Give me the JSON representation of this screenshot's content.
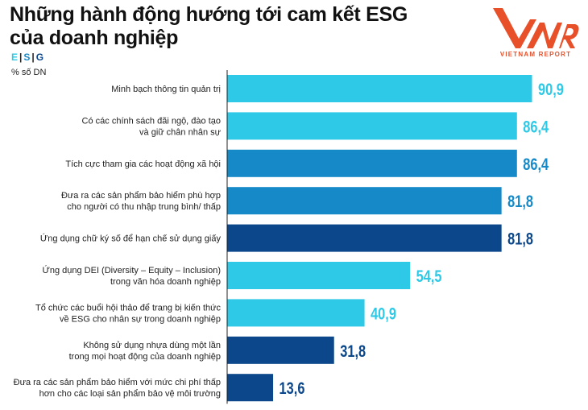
{
  "chart_data": {
    "type": "bar",
    "orientation": "horizontal",
    "title": "Những hành động hướng tới cam kết ESG của doanh nghiệp",
    "title_lines": [
      "Những hành động hướng tới cam kết ESG",
      "của doanh nghiệp"
    ],
    "unit_label": "% số DN",
    "legend": [
      {
        "label": "E",
        "color": "#2ec9e6"
      },
      {
        "label": "S",
        "color": "#168ac8"
      },
      {
        "label": "G",
        "color": "#0b478a"
      }
    ],
    "legend_placement": "top-left",
    "grid": false,
    "xlim": [
      0,
      100
    ],
    "categories": [
      [
        "Minh bạch thông tin quản trị"
      ],
      [
        "Có các chính sách đãi ngộ, đào tạo",
        "và giữ chân nhân sự"
      ],
      [
        "Tích cực tham gia các hoạt động xã hội"
      ],
      [
        "Đưa ra các sản phẩm bảo hiểm phù hợp",
        "cho người có thu nhập trung bình/ thấp"
      ],
      [
        "Ứng dụng chữ ký số để hạn chế sử dụng giấy"
      ],
      [
        "Ứng dụng DEI (Diversity – Equity – Inclusion)",
        "trong văn hóa doanh nghiệp"
      ],
      [
        "Tổ chức các buổi hội thảo để trang bị kiến thức",
        "về ESG cho nhân sự trong doanh nghiệp"
      ],
      [
        "Không sử dụng nhựa dùng một lần",
        "trong mọi hoạt động của doanh nghiệp"
      ],
      [
        "Đưa ra các sản phẩm bảo hiểm với mức chi phí thấp",
        "hơn cho các loại sản phẩm bảo vệ môi trường"
      ]
    ],
    "values": [
      90.9,
      86.4,
      86.4,
      81.8,
      81.8,
      54.5,
      40.9,
      31.8,
      13.6
    ],
    "value_labels": [
      "90,9",
      "86,4",
      "86,4",
      "81,8",
      "81,8",
      "54,5",
      "40,9",
      "31,8",
      "13,6"
    ],
    "groups": [
      "E",
      "E",
      "S",
      "S",
      "G",
      "E",
      "E",
      "G",
      "G"
    ]
  },
  "logo": {
    "mark": "VNR",
    "text": "VIETNAM REPORT",
    "color": "#e8502a"
  }
}
